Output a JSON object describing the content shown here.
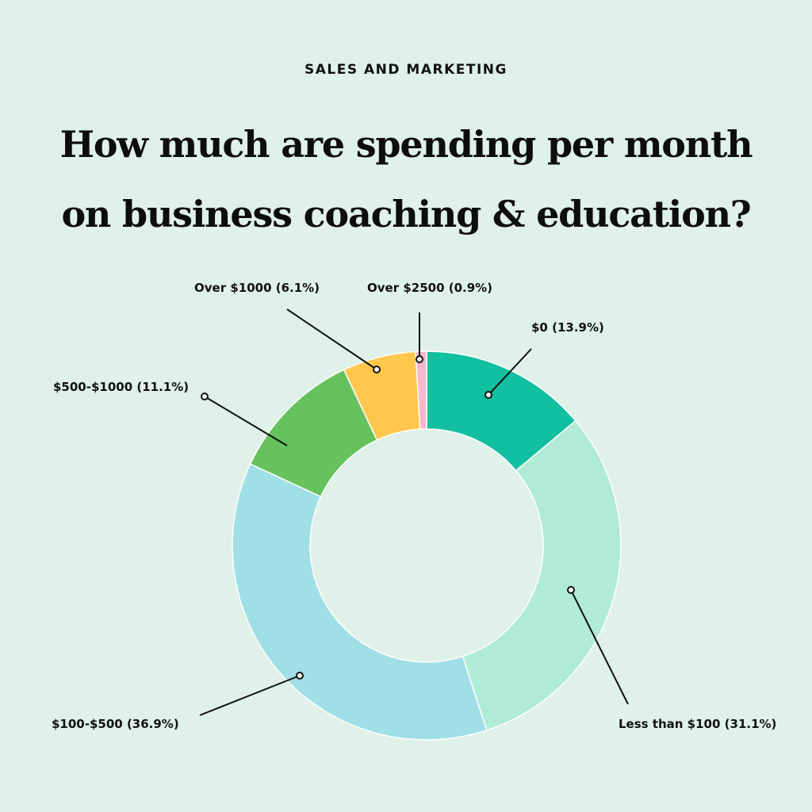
{
  "header": {
    "category": "SALES AND MARKETING",
    "title_line1": "How much are spending per month",
    "title_line2": "on business coaching & education?"
  },
  "chart_data": {
    "type": "pie",
    "variant": "donut",
    "title": "How much are spending per month on business coaching & education?",
    "slices": [
      {
        "name": "$0",
        "value": 13.9,
        "label": "$0 (13.9%)",
        "color": "#12bfa0"
      },
      {
        "name": "Less than $100",
        "value": 31.1,
        "label": "Less than $100 (31.1%)",
        "color": "#b0ebd6"
      },
      {
        "name": "$100-$500",
        "value": 36.9,
        "label": "$100-$500 (36.9%)",
        "color": "#a0dfe6"
      },
      {
        "name": "$500-$1000",
        "value": 11.1,
        "label": "$500-$1000 (11.1%)",
        "color": "#65c25c"
      },
      {
        "name": "Over $1000",
        "value": 6.1,
        "label": "Over $1000 (6.1%)",
        "color": "#ffc74d"
      },
      {
        "name": "Over $2500",
        "value": 0.9,
        "label": "Over $2500 (0.9%)",
        "color": "#f9b6cc"
      }
    ],
    "start_angle": "top",
    "direction": "clockwise",
    "legend": "none"
  }
}
